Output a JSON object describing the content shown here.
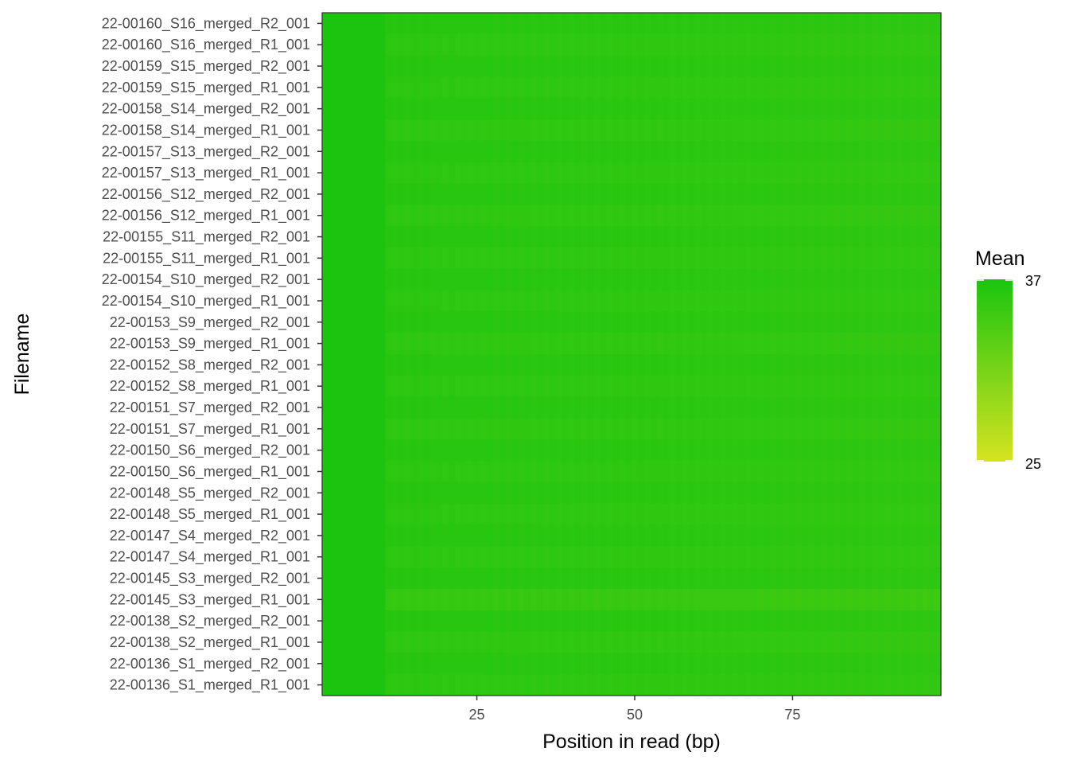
{
  "chart_data": {
    "type": "heatmap",
    "title": "",
    "xlabel": "Position in read (bp)",
    "ylabel": "Filename",
    "xlim": [
      0.5,
      98.5
    ],
    "x_ticks": [
      25,
      50,
      75
    ],
    "x_tick_labels": [
      "25",
      "50",
      "75"
    ],
    "rows": [
      "22-00160_S16_merged_R2_001",
      "22-00160_S16_merged_R1_001",
      "22-00159_S15_merged_R2_001",
      "22-00159_S15_merged_R1_001",
      "22-00158_S14_merged_R2_001",
      "22-00158_S14_merged_R1_001",
      "22-00157_S13_merged_R2_001",
      "22-00157_S13_merged_R1_001",
      "22-00156_S12_merged_R2_001",
      "22-00156_S12_merged_R1_001",
      "22-00155_S11_merged_R2_001",
      "22-00155_S11_merged_R1_001",
      "22-00154_S10_merged_R2_001",
      "22-00154_S10_merged_R1_001",
      "22-00153_S9_merged_R2_001",
      "22-00153_S9_merged_R1_001",
      "22-00152_S8_merged_R2_001",
      "22-00152_S8_merged_R1_001",
      "22-00151_S7_merged_R2_001",
      "22-00151_S7_merged_R1_001",
      "22-00150_S6_merged_R2_001",
      "22-00150_S6_merged_R1_001",
      "22-00148_S5_merged_R2_001",
      "22-00148_S5_merged_R1_001",
      "22-00147_S4_merged_R2_001",
      "22-00147_S4_merged_R1_001",
      "22-00145_S3_merged_R2_001",
      "22-00145_S3_merged_R1_001",
      "22-00138_S2_merged_R2_001",
      "22-00138_S2_merged_R1_001",
      "22-00136_S1_merged_R2_001",
      "22-00136_S1_merged_R1_001"
    ],
    "positions": {
      "start": 1,
      "end": 98,
      "step": 1
    },
    "row_base_mean": [
      36.3,
      36.0,
      36.3,
      36.0,
      36.3,
      35.9,
      36.3,
      36.0,
      36.3,
      35.9,
      36.3,
      36.0,
      36.3,
      36.0,
      36.3,
      35.9,
      36.3,
      36.0,
      36.3,
      35.9,
      36.3,
      36.0,
      36.3,
      36.0,
      36.3,
      36.0,
      36.3,
      35.4,
      36.3,
      35.9,
      36.3,
      36.0
    ],
    "profile": {
      "early_positions_end": 10,
      "early_mean": 36.9,
      "late_position_drop": 0.4,
      "alternating_dip": 0.15
    },
    "legend": {
      "title": "Mean",
      "min": 25,
      "max": 37,
      "labels": [
        "37",
        "25"
      ],
      "placement": "right"
    },
    "colors": {
      "low": "#d6e320",
      "high": "#1bc40f",
      "panel_border": "#333333",
      "tick": "#333333"
    },
    "grid": false
  }
}
